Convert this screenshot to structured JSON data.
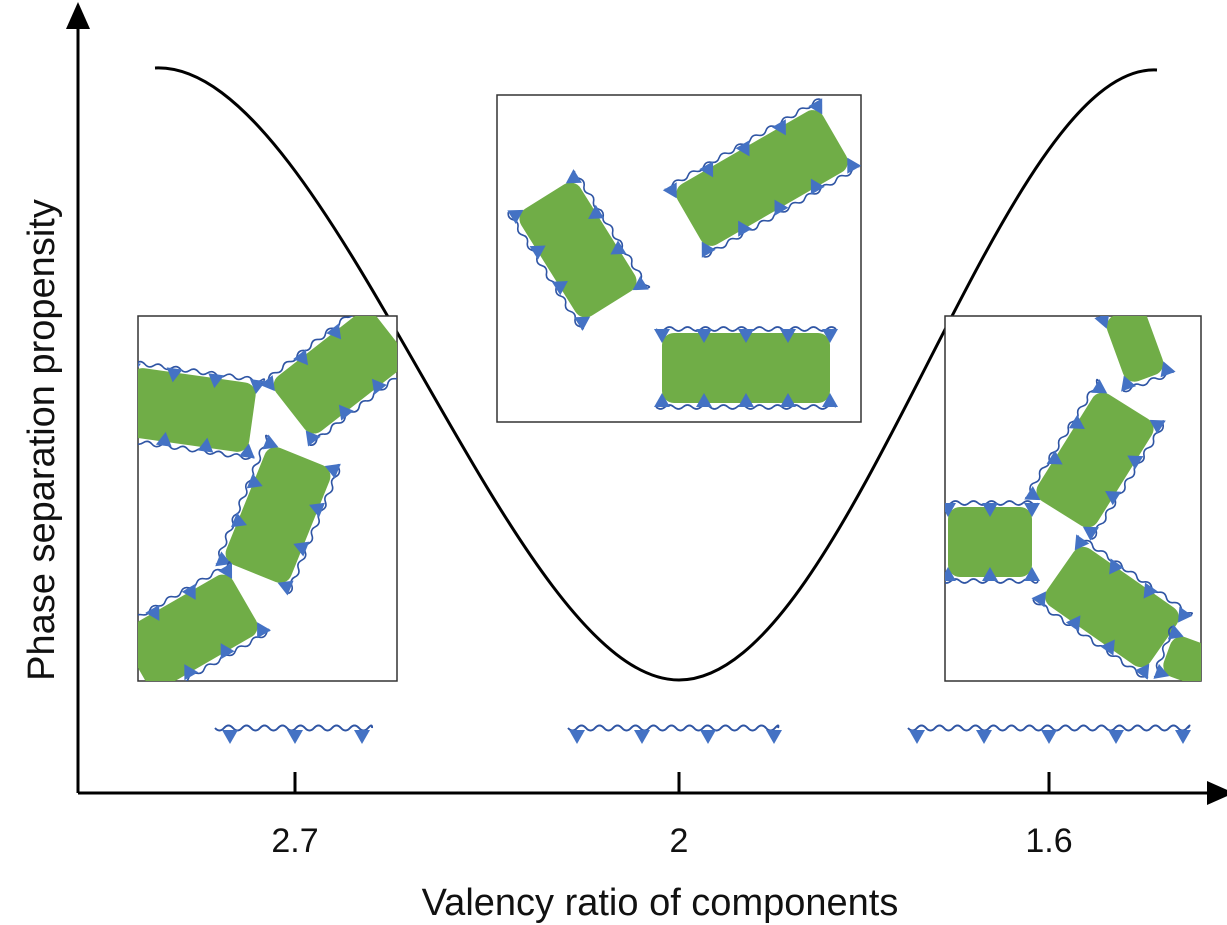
{
  "y_axis": {
    "label": "Phase separation propensity"
  },
  "x_axis": {
    "label": "Valency ratio of components",
    "ticks": [
      "2.7",
      "2",
      "1.6"
    ]
  }
}
